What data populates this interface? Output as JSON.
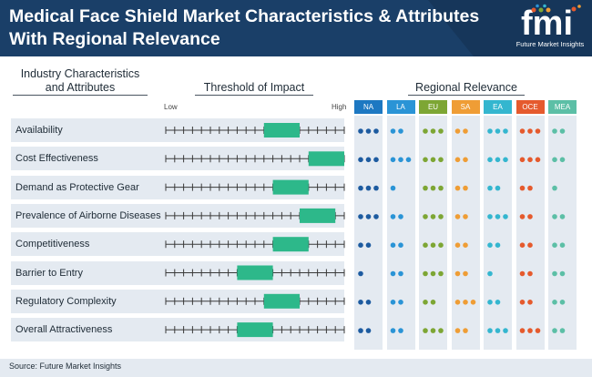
{
  "header": {
    "title_line1": "Medical Face Shield Market Characteristics & Attributes",
    "title_line2": "With Regional Relevance",
    "logo_text": "fmi",
    "logo_subtitle": "Future Market Insights",
    "bg_color": "#1a3f68"
  },
  "sections": {
    "characteristics": "Industry Characteristics and Attributes",
    "threshold": "Threshold of Impact",
    "regional": "Regional Relevance",
    "low": "Low",
    "high": "High"
  },
  "chart_data": {
    "type": "table",
    "characteristics": [
      "Availability",
      "Cost Effectiveness",
      "Demand as Protective Gear",
      "Prevalence of Airborne Diseases",
      "Competitiveness",
      "Barrier to Entry",
      "Regulatory Complexity",
      "Overall Attractiveness"
    ],
    "impact_scale": {
      "min": 0,
      "max": 20
    },
    "impact_ranges": [
      [
        11,
        15
      ],
      [
        16,
        20
      ],
      [
        12,
        16
      ],
      [
        15,
        19
      ],
      [
        12,
        16
      ],
      [
        8,
        12
      ],
      [
        11,
        15
      ],
      [
        8,
        12
      ]
    ],
    "impact_bar_color": "#2db88a",
    "regions": [
      {
        "name": "NA",
        "color": "#1d78c2",
        "dots_color": "#1d5ba0",
        "dots": [
          3,
          3,
          3,
          3,
          2,
          1,
          2,
          2
        ]
      },
      {
        "name": "LA",
        "color": "#2a94d6",
        "dots_color": "#2a94d6",
        "dots": [
          2,
          3,
          1,
          2,
          2,
          2,
          2,
          2
        ]
      },
      {
        "name": "EU",
        "color": "#7da634",
        "dots_color": "#7da634",
        "dots": [
          3,
          3,
          3,
          3,
          3,
          3,
          2,
          3
        ]
      },
      {
        "name": "SA",
        "color": "#ef9d35",
        "dots_color": "#ef9d35",
        "dots": [
          2,
          2,
          2,
          2,
          2,
          2,
          3,
          2
        ]
      },
      {
        "name": "EA",
        "color": "#34b6cf",
        "dots_color": "#34b6cf",
        "dots": [
          3,
          3,
          2,
          3,
          2,
          1,
          2,
          3
        ]
      },
      {
        "name": "OCE",
        "color": "#e55a2d",
        "dots_color": "#e55a2d",
        "dots": [
          3,
          3,
          2,
          2,
          2,
          2,
          2,
          3
        ]
      },
      {
        "name": "MEA",
        "color": "#5cbfa6",
        "dots_color": "#5cbfa6",
        "dots": [
          2,
          2,
          1,
          2,
          2,
          2,
          2,
          2
        ]
      }
    ]
  },
  "footer": {
    "source": "Source: Future Market Insights"
  }
}
